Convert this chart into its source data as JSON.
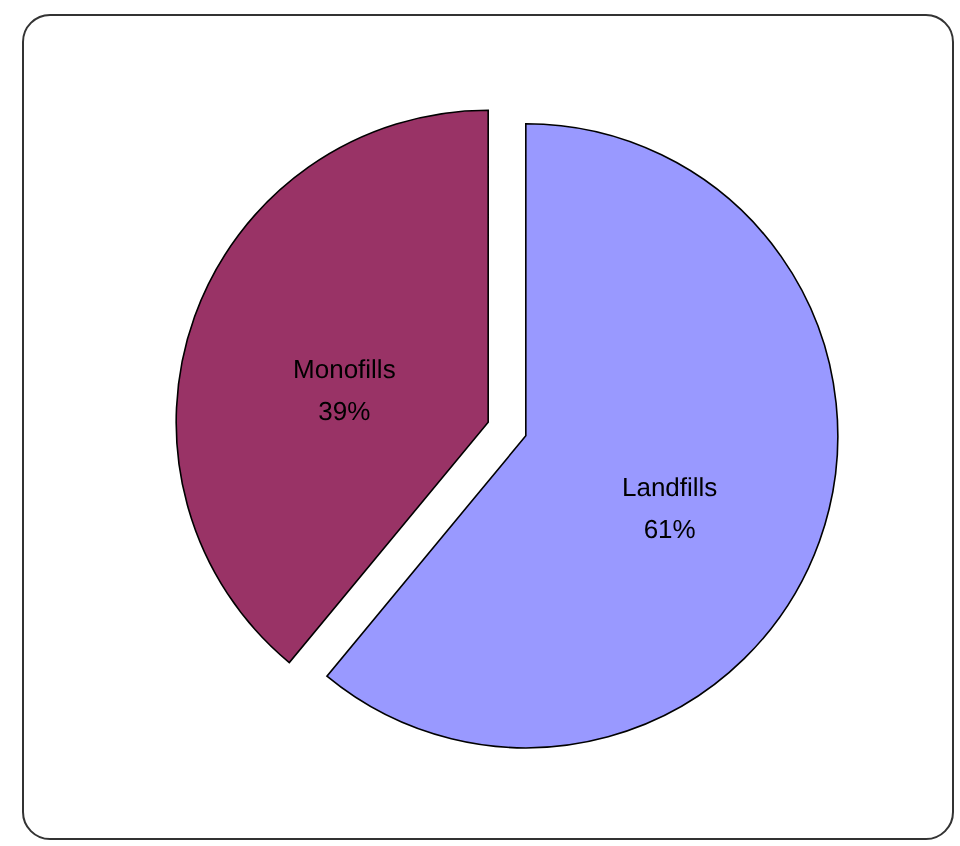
{
  "chart_data": {
    "type": "pie",
    "categories": [
      "Landfills",
      "Monofills"
    ],
    "values": [
      61,
      39
    ],
    "colors": [
      "#9999ff",
      "#993366"
    ],
    "value_labels": [
      "61%",
      "39%"
    ]
  }
}
